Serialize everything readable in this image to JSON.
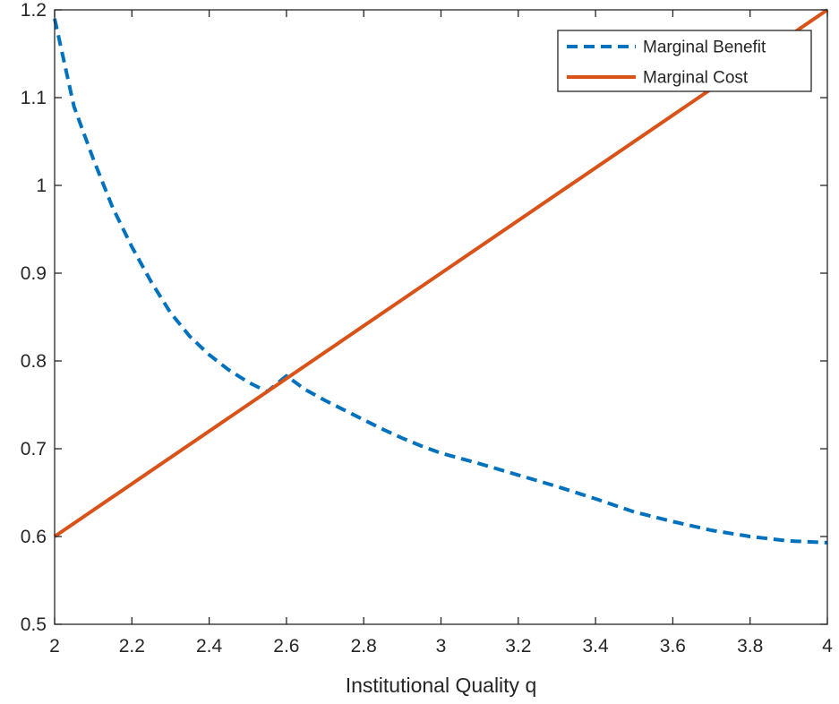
{
  "chart_data": {
    "type": "line",
    "title": "",
    "xlabel": "Institutional Quality q",
    "ylabel": "",
    "xlim": [
      2,
      4
    ],
    "ylim": [
      0.5,
      1.2
    ],
    "xticks": [
      2,
      2.2,
      2.4,
      2.6,
      2.8,
      3,
      3.2,
      3.4,
      3.6,
      3.8,
      4
    ],
    "xtick_labels": [
      "2",
      "2.2",
      "2.4",
      "2.6",
      "2.8",
      "3",
      "3.2",
      "3.4",
      "3.6",
      "3.8",
      "4"
    ],
    "yticks": [
      0.5,
      0.6,
      0.7,
      0.8,
      0.9,
      1,
      1.1,
      1.2
    ],
    "ytick_labels": [
      "0.5",
      "0.6",
      "0.7",
      "0.8",
      "0.9",
      "1",
      "1.1",
      "1.2"
    ],
    "grid": false,
    "legend_position": "top-right",
    "series": [
      {
        "name": "Marginal Benefit",
        "color": "#0072BD",
        "style": "dashed",
        "x": [
          2.0,
          2.05,
          2.1,
          2.15,
          2.2,
          2.25,
          2.3,
          2.35,
          2.4,
          2.45,
          2.5,
          2.55,
          2.6,
          2.65,
          2.7,
          2.75,
          2.8,
          2.85,
          2.9,
          2.95,
          3.0,
          3.1,
          3.2,
          3.3,
          3.4,
          3.5,
          3.6,
          3.7,
          3.8,
          3.9,
          4.0
        ],
        "y": [
          1.19,
          1.09,
          1.03,
          0.975,
          0.93,
          0.89,
          0.855,
          0.828,
          0.807,
          0.79,
          0.776,
          0.765,
          0.783,
          0.767,
          0.755,
          0.744,
          0.733,
          0.722,
          0.712,
          0.703,
          0.695,
          0.683,
          0.67,
          0.657,
          0.643,
          0.628,
          0.617,
          0.607,
          0.6,
          0.595,
          0.593
        ]
      },
      {
        "name": "Marginal Cost",
        "color": "#D95319",
        "style": "solid",
        "x": [
          2.0,
          4.0
        ],
        "y": [
          0.6,
          1.2
        ]
      }
    ]
  }
}
